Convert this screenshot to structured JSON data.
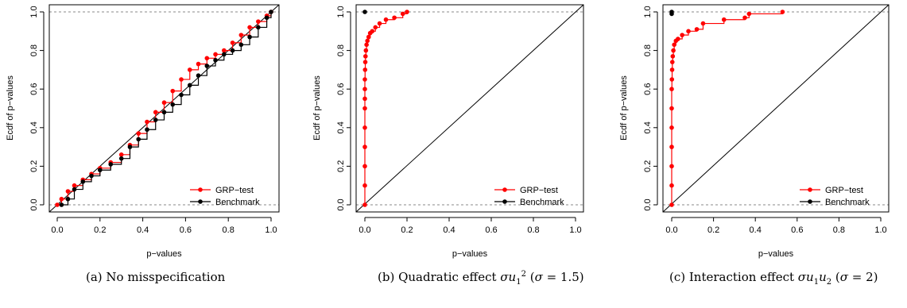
{
  "chart_data": [
    {
      "type": "scatter",
      "xlabel": "p−values",
      "ylabel": "Ecdf of p−values",
      "xlim": [
        0,
        1
      ],
      "ylim": [
        0,
        1
      ],
      "xticks": [
        "0.0",
        "0.2",
        "0.4",
        "0.6",
        "0.8",
        "1.0"
      ],
      "yticks": [
        "0.0",
        "0.2",
        "0.4",
        "0.6",
        "0.8",
        "1.0"
      ],
      "legend_position": "bottom-right",
      "reference_lines": [
        "y=0 dashed",
        "y=1 dashed",
        "diagonal y=x"
      ],
      "series": [
        {
          "name": "GRP−test",
          "color": "#ff0000",
          "x": [
            0.0,
            0.02,
            0.05,
            0.08,
            0.12,
            0.16,
            0.2,
            0.25,
            0.3,
            0.34,
            0.38,
            0.42,
            0.46,
            0.5,
            0.54,
            0.58,
            0.62,
            0.66,
            0.7,
            0.74,
            0.78,
            0.82,
            0.86,
            0.9,
            0.94,
            0.98,
            1.0
          ],
          "y": [
            0.0,
            0.03,
            0.07,
            0.1,
            0.13,
            0.16,
            0.19,
            0.22,
            0.26,
            0.31,
            0.37,
            0.43,
            0.48,
            0.53,
            0.59,
            0.65,
            0.7,
            0.73,
            0.76,
            0.78,
            0.8,
            0.84,
            0.88,
            0.92,
            0.95,
            0.98,
            1.0
          ]
        },
        {
          "name": "Benchmark",
          "color": "#000000",
          "x": [
            0.02,
            0.05,
            0.08,
            0.12,
            0.16,
            0.2,
            0.25,
            0.3,
            0.34,
            0.38,
            0.42,
            0.46,
            0.5,
            0.54,
            0.58,
            0.62,
            0.66,
            0.7,
            0.74,
            0.78,
            0.82,
            0.86,
            0.9,
            0.94,
            0.98,
            1.0
          ],
          "y": [
            0.0,
            0.03,
            0.08,
            0.12,
            0.15,
            0.18,
            0.21,
            0.24,
            0.3,
            0.34,
            0.39,
            0.44,
            0.48,
            0.52,
            0.57,
            0.62,
            0.67,
            0.72,
            0.75,
            0.78,
            0.8,
            0.83,
            0.87,
            0.92,
            0.97,
            1.0
          ]
        }
      ],
      "caption": "(a) No misspecification"
    },
    {
      "type": "scatter",
      "xlabel": "p−values",
      "ylabel": "Ecdf of p−values",
      "xlim": [
        0,
        1
      ],
      "ylim": [
        0,
        1
      ],
      "xticks": [
        "0.0",
        "0.2",
        "0.4",
        "0.6",
        "0.8",
        "1.0"
      ],
      "yticks": [
        "0.0",
        "0.2",
        "0.4",
        "0.6",
        "0.8",
        "1.0"
      ],
      "legend_position": "bottom-right",
      "reference_lines": [
        "y=0 dashed",
        "y=1 dashed",
        "diagonal y=x"
      ],
      "series": [
        {
          "name": "GRP−test",
          "color": "#ff0000",
          "x": [
            0.0,
            0.0,
            0.0,
            0.0,
            0.0,
            0.0,
            0.0,
            0.0,
            0.0,
            0.001,
            0.002,
            0.003,
            0.005,
            0.008,
            0.012,
            0.018,
            0.025,
            0.035,
            0.05,
            0.07,
            0.1,
            0.14,
            0.18,
            0.2
          ],
          "y": [
            0.0,
            0.1,
            0.2,
            0.3,
            0.4,
            0.5,
            0.55,
            0.6,
            0.65,
            0.7,
            0.74,
            0.77,
            0.8,
            0.83,
            0.85,
            0.87,
            0.89,
            0.9,
            0.92,
            0.94,
            0.96,
            0.97,
            0.99,
            1.0
          ]
        },
        {
          "name": "Benchmark",
          "color": "#000000",
          "x": [
            0.0
          ],
          "y": [
            1.0
          ]
        }
      ],
      "caption": "(b) Quadratic effect σu₁² (σ = 1.5)"
    },
    {
      "type": "scatter",
      "xlabel": "p−values",
      "ylabel": "Ecdf of p−values",
      "xlim": [
        0,
        1
      ],
      "ylim": [
        0,
        1
      ],
      "xticks": [
        "0.0",
        "0.2",
        "0.4",
        "0.6",
        "0.8",
        "1.0"
      ],
      "yticks": [
        "0.0",
        "0.2",
        "0.4",
        "0.6",
        "0.8",
        "1.0"
      ],
      "legend_position": "bottom-right",
      "reference_lines": [
        "y=0 dashed",
        "y=1 dashed",
        "diagonal y=x"
      ],
      "series": [
        {
          "name": "GRP−test",
          "color": "#ff0000",
          "x": [
            0.0,
            0.0,
            0.0,
            0.0,
            0.0,
            0.0,
            0.0,
            0.001,
            0.002,
            0.003,
            0.005,
            0.008,
            0.012,
            0.02,
            0.03,
            0.05,
            0.08,
            0.12,
            0.15,
            0.25,
            0.35,
            0.37,
            0.53
          ],
          "y": [
            0.0,
            0.1,
            0.2,
            0.3,
            0.4,
            0.5,
            0.6,
            0.65,
            0.7,
            0.74,
            0.77,
            0.8,
            0.83,
            0.85,
            0.86,
            0.88,
            0.9,
            0.91,
            0.94,
            0.96,
            0.97,
            0.99,
            1.0
          ]
        },
        {
          "name": "Benchmark",
          "color": "#000000",
          "x": [
            0.0,
            0.0
          ],
          "y": [
            0.99,
            1.0
          ]
        }
      ],
      "caption": "(c) Interaction effect σu₁u₂ (σ = 2)"
    }
  ]
}
